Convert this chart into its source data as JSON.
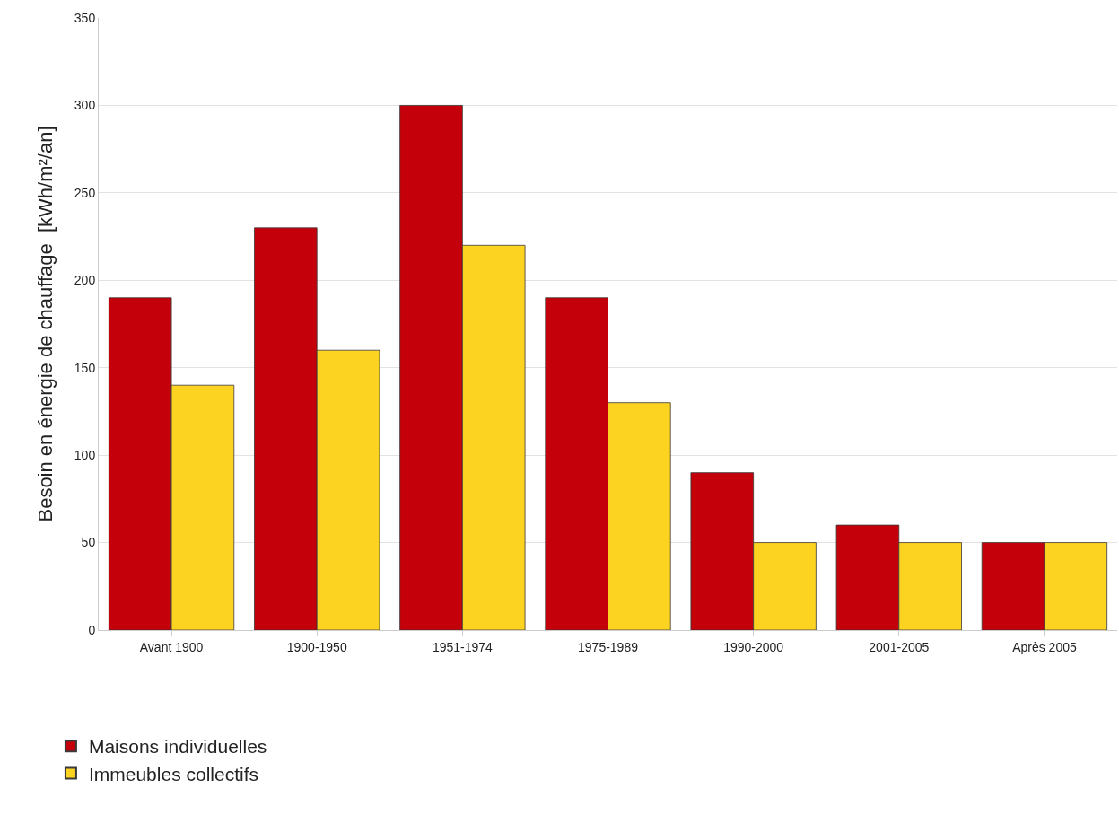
{
  "chart_data": {
    "type": "bar",
    "ylabel": "Besoin en énergie de chauffage  [kWh/m²/an]",
    "categories": [
      "Avant 1900",
      "1900-1950",
      "1951-1974",
      "1975-1989",
      "1990-2000",
      "2001-2005",
      "Après 2005"
    ],
    "series": [
      {
        "name": "Maisons individuelles",
        "color": "#c4000b",
        "values": [
          190,
          230,
          300,
          190,
          90,
          60,
          50
        ]
      },
      {
        "name": "Immeubles collectifs",
        "color": "#fcd321",
        "values": [
          140,
          160,
          220,
          130,
          50,
          50,
          50
        ]
      }
    ],
    "ylim": [
      0,
      350
    ],
    "yticks": [
      0,
      50,
      100,
      150,
      200,
      250,
      300,
      350
    ],
    "grid": "y",
    "legend": "bottom left"
  }
}
